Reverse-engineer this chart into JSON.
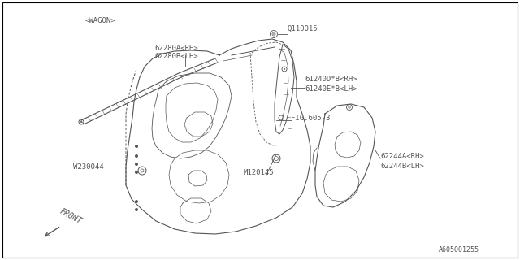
{
  "background_color": "#ffffff",
  "border_color": "#000000",
  "catalog_number": "A605001255",
  "labels": {
    "wagon": "<WAGON>",
    "part1a": "62280A<RH>",
    "part1b": "62280B<LH>",
    "part2a": "61240D*B<RH>",
    "part2b": "61240E*B<LH>",
    "part3": "FIG.605-3",
    "part4": "Q110015",
    "part5": "W230044",
    "part6": "M120145",
    "part7a": "62244A<RH>",
    "part7b": "62244B<LH>",
    "front": "FRONT"
  },
  "line_color": "#555555",
  "text_color": "#555555",
  "font_size": 6.5,
  "fig_width": 6.4,
  "fig_height": 3.2,
  "dpi": 100
}
